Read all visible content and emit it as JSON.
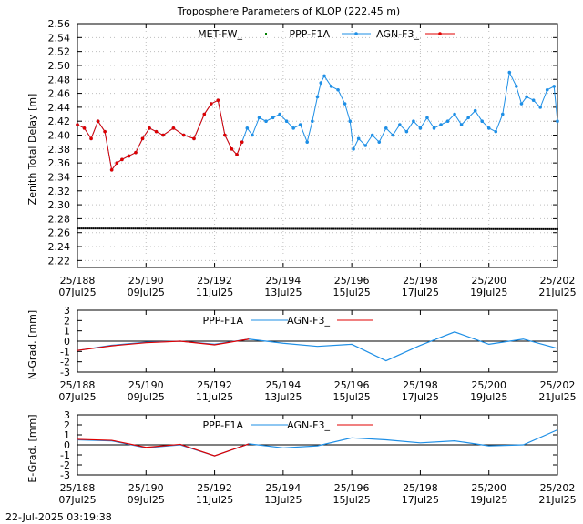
{
  "title": "Troposphere Parameters of KLOP (222.45 m)",
  "timestamp": "22-Jul-2025 03:19:38",
  "x_ticks": [
    {
      "day": 188,
      "top": "25/188",
      "bottom": "07Jul25"
    },
    {
      "day": 190,
      "top": "25/190",
      "bottom": "09Jul25"
    },
    {
      "day": 192,
      "top": "25/192",
      "bottom": "11Jul25"
    },
    {
      "day": 194,
      "top": "25/194",
      "bottom": "13Jul25"
    },
    {
      "day": 196,
      "top": "25/196",
      "bottom": "15Jul25"
    },
    {
      "day": 198,
      "top": "25/198",
      "bottom": "17Jul25"
    },
    {
      "day": 200,
      "top": "25/200",
      "bottom": "19Jul25"
    },
    {
      "day": 202,
      "top": "25/202",
      "bottom": "21Jul25"
    }
  ],
  "colors": {
    "met": "#008000",
    "ppp": "#1e8fe6",
    "agn": "#e00000",
    "axis": "#000000",
    "grid": "#bfbfbf",
    "zero": "#000000"
  },
  "chart_data": [
    {
      "type": "line",
      "ylabel": "Zenith Total Delay [m]",
      "xlim": [
        188,
        202
      ],
      "ylim": [
        2.21,
        2.56
      ],
      "y_ticks": [
        2.22,
        2.24,
        2.26,
        2.28,
        2.3,
        2.32,
        2.34,
        2.36,
        2.38,
        2.4,
        2.42,
        2.44,
        2.46,
        2.48,
        2.5,
        2.52,
        2.54,
        2.56
      ],
      "y_decimals": 2,
      "grid": true,
      "legend": "top-center",
      "series": [
        {
          "name": "MET-FW_",
          "style": "dots",
          "x": [
            188,
            202
          ],
          "y": [
            2.266,
            2.265
          ]
        },
        {
          "name": "PPP-F1A",
          "style": "line-marker",
          "x": [
            188.0,
            188.2,
            188.4,
            188.6,
            188.8,
            189.0,
            189.15,
            189.3,
            189.5,
            189.7,
            189.9,
            190.1,
            190.3,
            190.5,
            190.8,
            191.1,
            191.4,
            191.7,
            191.9,
            192.1,
            192.3,
            192.5,
            192.65,
            192.8,
            192.95,
            193.1,
            193.3,
            193.5,
            193.7,
            193.9,
            194.1,
            194.3,
            194.5,
            194.7,
            194.85,
            195.0,
            195.1,
            195.2,
            195.4,
            195.6,
            195.8,
            195.95,
            196.05,
            196.2,
            196.4,
            196.6,
            196.8,
            197.0,
            197.2,
            197.4,
            197.6,
            197.8,
            198.0,
            198.2,
            198.4,
            198.6,
            198.8,
            199.0,
            199.2,
            199.4,
            199.6,
            199.8,
            200.0,
            200.2,
            200.4,
            200.6,
            200.8,
            200.95,
            201.1,
            201.3,
            201.5,
            201.7,
            201.9,
            202.0
          ],
          "y": [
            2.415,
            2.41,
            2.395,
            2.42,
            2.405,
            2.35,
            2.36,
            2.365,
            2.37,
            2.375,
            2.395,
            2.41,
            2.405,
            2.4,
            2.41,
            2.4,
            2.395,
            2.43,
            2.445,
            2.45,
            2.4,
            2.38,
            2.372,
            2.39,
            2.41,
            2.4,
            2.425,
            2.42,
            2.425,
            2.43,
            2.42,
            2.41,
            2.415,
            2.39,
            2.42,
            2.455,
            2.475,
            2.485,
            2.47,
            2.465,
            2.445,
            2.42,
            2.38,
            2.395,
            2.385,
            2.4,
            2.39,
            2.41,
            2.4,
            2.415,
            2.405,
            2.42,
            2.41,
            2.425,
            2.41,
            2.415,
            2.42,
            2.43,
            2.415,
            2.425,
            2.435,
            2.42,
            2.41,
            2.405,
            2.43,
            2.49,
            2.47,
            2.445,
            2.455,
            2.45,
            2.44,
            2.465,
            2.47,
            2.42
          ]
        },
        {
          "name": "AGN-F3_",
          "style": "line-marker",
          "x": [
            188.0,
            188.2,
            188.4,
            188.6,
            188.8,
            189.0,
            189.15,
            189.3,
            189.5,
            189.7,
            189.9,
            190.1,
            190.3,
            190.5,
            190.8,
            191.1,
            191.4,
            191.7,
            191.9,
            192.1,
            192.3,
            192.5,
            192.65,
            192.8
          ],
          "y": [
            2.415,
            2.41,
            2.395,
            2.42,
            2.405,
            2.35,
            2.36,
            2.365,
            2.37,
            2.375,
            2.395,
            2.41,
            2.405,
            2.4,
            2.41,
            2.4,
            2.395,
            2.43,
            2.445,
            2.45,
            2.4,
            2.38,
            2.372,
            2.39
          ]
        }
      ]
    },
    {
      "type": "line",
      "ylabel": "N-Grad. [mm]",
      "xlim": [
        188,
        202
      ],
      "ylim": [
        -3,
        3
      ],
      "y_ticks": [
        -3,
        -2,
        -1,
        0,
        1,
        2,
        3
      ],
      "y_decimals": 0,
      "zero_line": true,
      "legend": "top-center",
      "series": [
        {
          "name": "PPP-F1A",
          "style": "line",
          "x": [
            188,
            189,
            190,
            191,
            192,
            193,
            194,
            195,
            196,
            197,
            198,
            199,
            200,
            201,
            202
          ],
          "y": [
            -0.9,
            -0.4,
            -0.1,
            0.0,
            -0.3,
            0.2,
            -0.2,
            -0.5,
            -0.3,
            -1.9,
            -0.4,
            0.9,
            -0.3,
            0.2,
            -0.7
          ]
        },
        {
          "name": "AGN-F3_",
          "style": "line",
          "x": [
            188,
            189,
            190,
            191,
            192,
            193
          ],
          "y": [
            -0.9,
            -0.45,
            -0.15,
            0.0,
            -0.35,
            0.2
          ]
        }
      ]
    },
    {
      "type": "line",
      "ylabel": "E-Grad. [mm]",
      "xlim": [
        188,
        202
      ],
      "ylim": [
        -3,
        3
      ],
      "y_ticks": [
        -3,
        -2,
        -1,
        0,
        1,
        2,
        3
      ],
      "y_decimals": 0,
      "zero_line": true,
      "legend": "top-center",
      "series": [
        {
          "name": "PPP-F1A",
          "style": "line",
          "x": [
            188,
            189,
            190,
            191,
            192,
            193,
            194,
            195,
            196,
            197,
            198,
            199,
            200,
            201,
            202
          ],
          "y": [
            0.5,
            0.4,
            -0.3,
            0.0,
            -1.1,
            0.1,
            -0.3,
            -0.1,
            0.7,
            0.5,
            0.2,
            0.4,
            -0.1,
            0.0,
            1.5
          ]
        },
        {
          "name": "AGN-F3_",
          "style": "line",
          "x": [
            188,
            189,
            190,
            191,
            192,
            193
          ],
          "y": [
            0.55,
            0.45,
            -0.25,
            0.05,
            -1.1,
            0.1
          ]
        }
      ]
    }
  ]
}
